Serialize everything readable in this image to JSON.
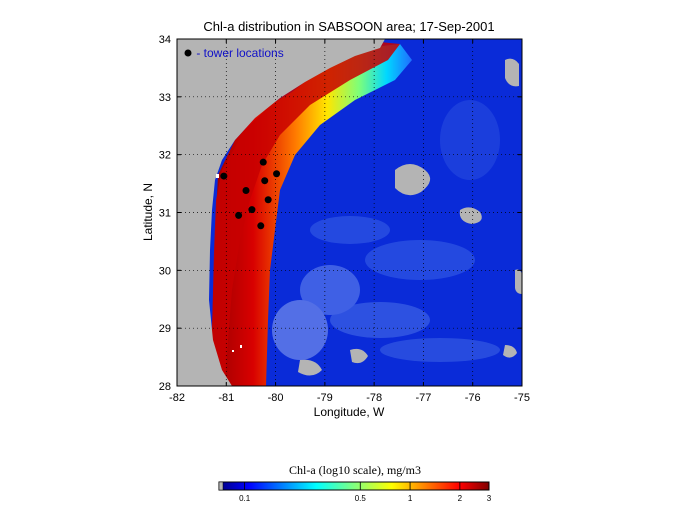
{
  "map": {
    "title": "Chl-a distribution in SABSOON area; 17-Sep-2001",
    "xlabel": "Longitude, W",
    "ylabel": "Latitude, N",
    "xlim": [
      -82,
      -75
    ],
    "ylim": [
      28,
      34
    ],
    "x_ticks": [
      -82,
      -81,
      -80,
      -79,
      -78,
      -77,
      -76,
      -75
    ],
    "x_tick_labels": [
      "-82",
      "-81",
      "-80",
      "-79",
      "-78",
      "-77",
      "-76",
      "-75"
    ],
    "y_ticks": [
      28,
      29,
      30,
      31,
      32,
      33,
      34
    ],
    "y_tick_labels": [
      "28",
      "29",
      "30",
      "31",
      "32",
      "33",
      "34"
    ],
    "grid": "dotted",
    "legend": {
      "label": " - tower locations",
      "placement": "top-left"
    },
    "towers": [
      {
        "lon": -81.05,
        "lat": 31.63
      },
      {
        "lon": -80.25,
        "lat": 31.87
      },
      {
        "lon": -79.98,
        "lat": 31.67
      },
      {
        "lon": -80.22,
        "lat": 31.55
      },
      {
        "lon": -80.6,
        "lat": 31.38
      },
      {
        "lon": -80.15,
        "lat": 31.22
      },
      {
        "lon": -80.48,
        "lat": 31.05
      },
      {
        "lon": -80.75,
        "lat": 30.95
      },
      {
        "lon": -80.3,
        "lat": 30.77
      }
    ],
    "colors": {
      "land": "#b4b4b4",
      "deep_ocean": "#0a2bd8",
      "tower_marker": "#000000",
      "legend_text": "#1010c8"
    }
  },
  "colorbar": {
    "title": "Chl-a (log10 scale), mg/m3",
    "ticks": [
      {
        "label": "0.1",
        "value": 0.1
      },
      {
        "label": "0.5",
        "value": 0.5
      },
      {
        "label": "1",
        "value": 1
      },
      {
        "label": "2",
        "value": 2
      },
      {
        "label": "3",
        "value": 3
      }
    ],
    "range": [
      0.07,
      3
    ],
    "scale": "log10",
    "colormap": "jet"
  }
}
